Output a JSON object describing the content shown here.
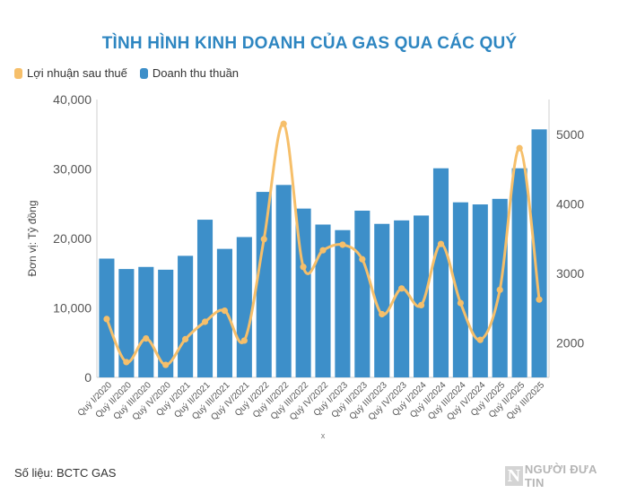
{
  "colors": {
    "bar": "#3d8fc9",
    "line": "#f6bf6a",
    "title": "#2e86c1"
  },
  "chart_data": {
    "type": "bar",
    "title": "TÌNH HÌNH KINH DOANH CỦA GAS QUA CÁC QUÝ",
    "ylabel": "Đơn vị: Tỷ đồng",
    "xlabel": "x",
    "categories": [
      "Quý I/2020",
      "Quý II/2020",
      "Quý III/2020",
      "Quý IV/2020",
      "Quý I/2021",
      "Quý II/2021",
      "Quý III/2021",
      "Quý IV/2021",
      "Quý I/2022",
      "Quý II/2022",
      "Quý III/2022",
      "Quý IV/2022",
      "Quý I/2023",
      "Quý II/2023",
      "Quý III/2023",
      "Quý IV/2023",
      "Quý I/2024",
      "Quý II/2024",
      "Quý III/2024",
      "Quý IV/2024",
      "Quý I/2025",
      "Quý II/2025",
      "Quý III/2025"
    ],
    "series": [
      {
        "name": "Doanh thu thuần",
        "type": "bar",
        "axis": "left",
        "values": [
          17100,
          15600,
          15900,
          15500,
          17500,
          22700,
          18500,
          20200,
          26700,
          27700,
          24300,
          22000,
          21200,
          24000,
          22100,
          22600,
          23300,
          30100,
          25200,
          24900,
          25700,
          30100,
          35700
        ]
      },
      {
        "name": "Lợi nhuận sau thuế",
        "type": "line",
        "axis": "right",
        "values": [
          2340,
          1720,
          2060,
          1680,
          2050,
          2300,
          2460,
          2030,
          3490,
          5150,
          3090,
          3330,
          3410,
          3200,
          2410,
          2780,
          2540,
          3420,
          2570,
          2040,
          2760,
          4800,
          2620
        ]
      }
    ],
    "ylim": [
      0,
      40000
    ],
    "yticks": [
      "0",
      "10,000",
      "20,000",
      "30,000",
      "40,000"
    ],
    "y2lim": [
      1500,
      5500
    ],
    "y2ticks": [
      "2000",
      "3000",
      "4000",
      "5000"
    ],
    "legend_position": "top-left"
  },
  "footer": {
    "source": "Số liệu: BCTC GAS",
    "logo_mark": "N",
    "logo_text": "NGƯỜI ĐƯA TIN"
  }
}
